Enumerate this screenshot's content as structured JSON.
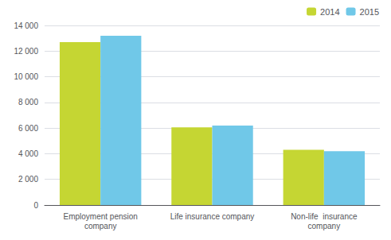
{
  "chart_data": {
    "type": "bar",
    "categories": [
      "Employment pension\ncompany",
      "Life insurance company",
      "Non-life  insurance\ncompany"
    ],
    "series": [
      {
        "name": "2014",
        "color": "#c5d633",
        "values": [
          12700,
          6050,
          4300
        ]
      },
      {
        "name": "2015",
        "color": "#70c8e8",
        "values": [
          13200,
          6200,
          4200
        ]
      }
    ],
    "ylim": [
      0,
      14000
    ],
    "yticks": [
      0,
      {
        "value": 2000,
        "label": "2 000"
      },
      {
        "value": 4000,
        "label": "4 000"
      },
      {
        "value": 6000,
        "label": "6 000"
      },
      {
        "value": 8000,
        "label": "8 000"
      },
      {
        "value": 10000,
        "label": "10 000"
      },
      {
        "value": 12000,
        "label": "12 000"
      },
      {
        "value": 14000,
        "label": "14 000"
      }
    ],
    "grid": true,
    "legend": "upper right"
  }
}
